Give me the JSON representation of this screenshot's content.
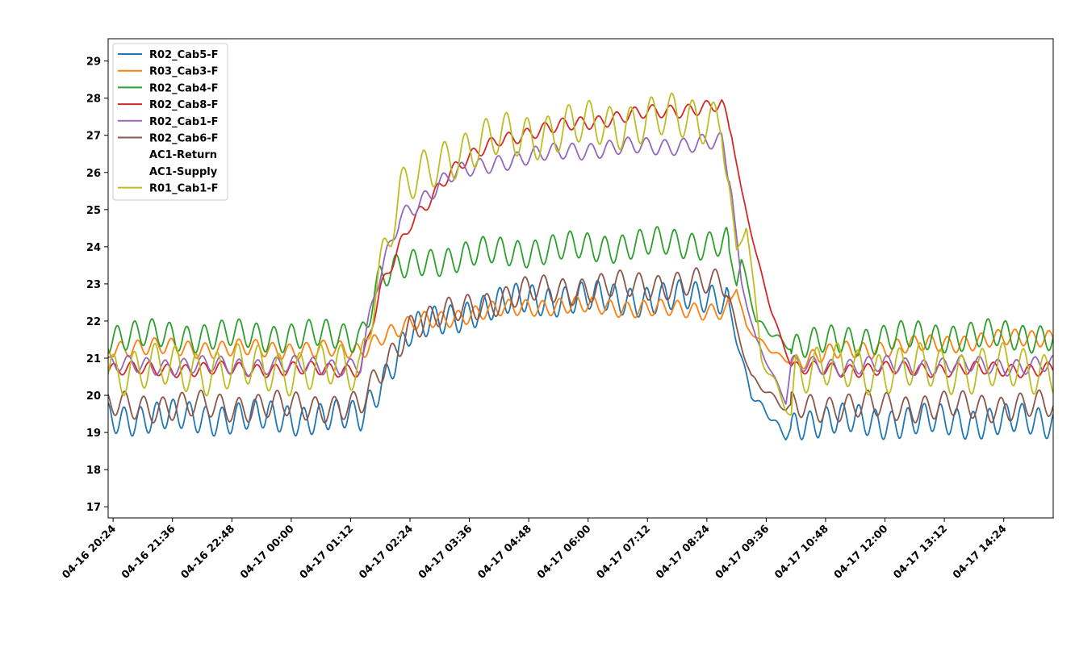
{
  "chart_data": {
    "type": "line",
    "title": "",
    "xlabel": "",
    "ylabel": "",
    "ylim": [
      16.7,
      29.6
    ],
    "yticks": [
      17,
      18,
      19,
      20,
      21,
      22,
      23,
      24,
      25,
      26,
      27,
      28,
      29
    ],
    "xlim_hours": [
      -0.9,
      18.2
    ],
    "x_reference": "04-16 21:12 = 0 hours",
    "xticks": [
      {
        "label": "04-16 20:24",
        "t": -0.8
      },
      {
        "label": "04-16 21:36",
        "t": 0.4
      },
      {
        "label": "04-16 22:48",
        "t": 1.6
      },
      {
        "label": "04-17 00:00",
        "t": 2.8
      },
      {
        "label": "04-17 01:12",
        "t": 4.0
      },
      {
        "label": "04-17 02:24",
        "t": 5.2
      },
      {
        "label": "04-17 03:36",
        "t": 6.4
      },
      {
        "label": "04-17 04:48",
        "t": 7.6
      },
      {
        "label": "04-17 06:00",
        "t": 8.8
      },
      {
        "label": "04-17 07:12",
        "t": 10.0
      },
      {
        "label": "04-17 08:24",
        "t": 11.2
      },
      {
        "label": "04-17 09:36",
        "t": 12.4
      },
      {
        "label": "04-17 10:48",
        "t": 13.6
      },
      {
        "label": "04-17 12:00",
        "t": 14.8
      },
      {
        "label": "04-17 13:12",
        "t": 16.0
      },
      {
        "label": "04-17 14:24",
        "t": 17.2
      }
    ],
    "legend_position": "top-left",
    "series": [
      {
        "name": "R02_Cab5-F",
        "color": "#1f77b4",
        "t": [
          -0.9,
          4.2,
          5.2,
          6.5,
          7.6,
          9.0,
          10.5,
          11.6,
          11.8,
          12.1,
          12.8,
          13.0,
          14.0,
          16.0,
          18.2
        ],
        "values": [
          19.4,
          19.4,
          21.7,
          22.3,
          22.6,
          22.6,
          22.6,
          22.7,
          21.5,
          20.0,
          18.9,
          19.3,
          19.3,
          19.3,
          19.3
        ],
        "amplitude": 0.45
      },
      {
        "name": "R03_Cab3-F",
        "color": "#ff7f0e",
        "t": [
          -0.9,
          4.2,
          4.6,
          5.5,
          6.5,
          7.6,
          9.0,
          10.5,
          11.6,
          11.8,
          12.0,
          12.5,
          12.9,
          14.0,
          16.0,
          18.2
        ],
        "values": [
          21.3,
          21.2,
          21.6,
          22.0,
          22.2,
          22.4,
          22.4,
          22.3,
          22.3,
          22.9,
          21.8,
          21.2,
          20.9,
          21.2,
          21.4,
          21.6
        ],
        "amplitude": 0.25
      },
      {
        "name": "R02_Cab4-F",
        "color": "#2ca02c",
        "t": [
          -0.9,
          4.2,
          4.6,
          5.5,
          6.5,
          7.6,
          9.0,
          10.5,
          11.6,
          11.8,
          11.9,
          12.2,
          12.9,
          14.0,
          16.0,
          18.2
        ],
        "values": [
          21.6,
          21.6,
          23.2,
          23.6,
          23.8,
          23.9,
          24.0,
          24.1,
          24.1,
          23.0,
          23.6,
          22.0,
          21.3,
          21.5,
          21.6,
          21.6
        ],
        "amplitude": 0.42
      },
      {
        "name": "R02_Cab8-F",
        "color": "#d62728",
        "t": [
          -0.9,
          4.2,
          4.6,
          5.2,
          6.0,
          7.0,
          8.5,
          10.0,
          11.5,
          11.7,
          11.9,
          12.2,
          12.5,
          12.9,
          13.0,
          14.0,
          16.0,
          18.2
        ],
        "values": [
          20.7,
          20.7,
          22.8,
          24.6,
          26.0,
          26.9,
          27.3,
          27.6,
          27.8,
          27.0,
          25.5,
          23.8,
          22.3,
          20.8,
          20.7,
          20.7,
          20.7,
          20.7
        ],
        "amplitude": 0.2
      },
      {
        "name": "R02_Cab1-F",
        "color": "#9467bd",
        "t": [
          -0.9,
          4.2,
          4.5,
          5.0,
          6.0,
          7.0,
          8.5,
          10.0,
          11.5,
          11.7,
          11.9,
          12.2,
          12.8,
          12.9,
          14.0,
          16.0,
          18.2
        ],
        "values": [
          20.8,
          20.8,
          22.8,
          24.8,
          25.9,
          26.3,
          26.6,
          26.7,
          26.8,
          25.5,
          23.0,
          21.5,
          19.8,
          20.8,
          20.8,
          20.8,
          20.8
        ],
        "amplitude": 0.25
      },
      {
        "name": "R02_Cab6-F",
        "color": "#8c564b",
        "t": [
          -0.9,
          4.2,
          5.2,
          6.5,
          7.6,
          9.0,
          10.5,
          11.6,
          11.8,
          12.1,
          12.8,
          13.0,
          14.0,
          16.0,
          18.2
        ],
        "values": [
          19.7,
          19.7,
          21.9,
          22.4,
          22.8,
          22.9,
          23.0,
          23.0,
          21.8,
          20.5,
          19.6,
          19.7,
          19.7,
          19.7,
          19.7
        ],
        "amplitude": 0.4
      },
      {
        "name": "AC1-Return",
        "color": "#e377c2",
        "t": [],
        "values": [],
        "amplitude": 0
      },
      {
        "name": "AC1-Supply",
        "color": "#7f7f7f",
        "t": [],
        "values": [],
        "amplitude": 0
      },
      {
        "name": "R01_Cab1-F",
        "color": "#bcbd22",
        "t": [
          -0.9,
          4.2,
          4.5,
          5.0,
          6.0,
          7.0,
          8.5,
          10.0,
          11.5,
          11.7,
          11.8,
          12.0,
          12.3,
          12.9,
          13.0,
          14.0,
          16.0,
          18.2
        ],
        "values": [
          20.7,
          20.7,
          23.0,
          25.4,
          26.5,
          26.9,
          27.2,
          27.4,
          27.5,
          25.0,
          23.8,
          24.6,
          21.0,
          19.5,
          20.7,
          20.7,
          20.7,
          20.7
        ],
        "amplitude": 0.65
      }
    ]
  }
}
